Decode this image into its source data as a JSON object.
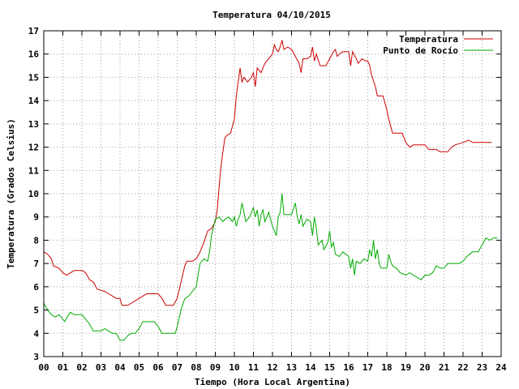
{
  "chart_data": {
    "type": "line",
    "title": "Temperatura 04/10/2015",
    "xlabel": "Tiempo (Hora Local Argentina)",
    "ylabel": "Temperatura (Grados Celsius)",
    "xlim": [
      0,
      24
    ],
    "ylim": [
      3,
      17
    ],
    "x_ticks": [
      "00",
      "01",
      "02",
      "03",
      "04",
      "05",
      "06",
      "07",
      "08",
      "09",
      "10",
      "11",
      "12",
      "13",
      "14",
      "15",
      "16",
      "17",
      "18",
      "19",
      "20",
      "21",
      "22",
      "23",
      "24"
    ],
    "y_ticks": [
      3,
      4,
      5,
      6,
      7,
      8,
      9,
      10,
      11,
      12,
      13,
      14,
      15,
      16,
      17
    ],
    "grid": true,
    "legend_position": "top-right",
    "series": [
      {
        "name": "Temperatura",
        "color": "#cc0000",
        "points": [
          [
            0.0,
            7.5
          ],
          [
            0.2,
            7.4
          ],
          [
            0.4,
            7.2
          ],
          [
            0.5,
            6.9
          ],
          [
            0.8,
            6.8
          ],
          [
            1.0,
            6.6
          ],
          [
            1.2,
            6.5
          ],
          [
            1.4,
            6.6
          ],
          [
            1.6,
            6.7
          ],
          [
            2.0,
            6.7
          ],
          [
            2.2,
            6.6
          ],
          [
            2.4,
            6.3
          ],
          [
            2.6,
            6.2
          ],
          [
            2.8,
            5.9
          ],
          [
            3.2,
            5.8
          ],
          [
            3.4,
            5.7
          ],
          [
            3.6,
            5.6
          ],
          [
            3.8,
            5.5
          ],
          [
            4.0,
            5.5
          ],
          [
            4.1,
            5.2
          ],
          [
            4.4,
            5.2
          ],
          [
            4.6,
            5.3
          ],
          [
            4.8,
            5.4
          ],
          [
            5.0,
            5.5
          ],
          [
            5.2,
            5.6
          ],
          [
            5.4,
            5.7
          ],
          [
            5.6,
            5.7
          ],
          [
            6.0,
            5.7
          ],
          [
            6.2,
            5.5
          ],
          [
            6.4,
            5.2
          ],
          [
            6.8,
            5.2
          ],
          [
            7.0,
            5.5
          ],
          [
            7.2,
            6.2
          ],
          [
            7.4,
            6.9
          ],
          [
            7.5,
            7.1
          ],
          [
            7.8,
            7.1
          ],
          [
            8.0,
            7.2
          ],
          [
            8.2,
            7.5
          ],
          [
            8.4,
            7.9
          ],
          [
            8.6,
            8.4
          ],
          [
            8.8,
            8.5
          ],
          [
            9.0,
            8.8
          ],
          [
            9.1,
            9.3
          ],
          [
            9.2,
            10.3
          ],
          [
            9.3,
            11.2
          ],
          [
            9.4,
            11.8
          ],
          [
            9.5,
            12.4
          ],
          [
            9.6,
            12.5
          ],
          [
            9.8,
            12.6
          ],
          [
            10.0,
            13.2
          ],
          [
            10.1,
            14.2
          ],
          [
            10.2,
            14.8
          ],
          [
            10.3,
            15.4
          ],
          [
            10.4,
            14.8
          ],
          [
            10.5,
            15.0
          ],
          [
            10.7,
            14.8
          ],
          [
            10.9,
            15.0
          ],
          [
            11.0,
            15.2
          ],
          [
            11.1,
            14.6
          ],
          [
            11.2,
            15.4
          ],
          [
            11.4,
            15.2
          ],
          [
            11.6,
            15.6
          ],
          [
            11.8,
            15.8
          ],
          [
            12.0,
            16.0
          ],
          [
            12.1,
            16.4
          ],
          [
            12.2,
            16.2
          ],
          [
            12.3,
            16.1
          ],
          [
            12.4,
            16.3
          ],
          [
            12.5,
            16.6
          ],
          [
            12.6,
            16.2
          ],
          [
            12.8,
            16.3
          ],
          [
            13.0,
            16.2
          ],
          [
            13.2,
            15.9
          ],
          [
            13.4,
            15.6
          ],
          [
            13.5,
            15.2
          ],
          [
            13.6,
            15.8
          ],
          [
            13.8,
            15.8
          ],
          [
            14.0,
            15.9
          ],
          [
            14.1,
            16.3
          ],
          [
            14.2,
            15.7
          ],
          [
            14.3,
            16.0
          ],
          [
            14.5,
            15.5
          ],
          [
            14.8,
            15.5
          ],
          [
            15.0,
            15.8
          ],
          [
            15.2,
            16.1
          ],
          [
            15.3,
            16.2
          ],
          [
            15.4,
            15.9
          ],
          [
            15.5,
            16.0
          ],
          [
            15.7,
            16.1
          ],
          [
            16.0,
            16.1
          ],
          [
            16.1,
            15.5
          ],
          [
            16.2,
            16.1
          ],
          [
            16.4,
            15.8
          ],
          [
            16.5,
            15.6
          ],
          [
            16.7,
            15.8
          ],
          [
            16.9,
            15.7
          ],
          [
            17.0,
            15.7
          ],
          [
            17.1,
            15.5
          ],
          [
            17.2,
            15.1
          ],
          [
            17.4,
            14.6
          ],
          [
            17.5,
            14.2
          ],
          [
            17.8,
            14.2
          ],
          [
            18.0,
            13.6
          ],
          [
            18.1,
            13.2
          ],
          [
            18.3,
            12.6
          ],
          [
            18.5,
            12.6
          ],
          [
            18.8,
            12.6
          ],
          [
            19.0,
            12.2
          ],
          [
            19.2,
            12.0
          ],
          [
            19.4,
            12.1
          ],
          [
            19.6,
            12.1
          ],
          [
            20.0,
            12.1
          ],
          [
            20.2,
            11.9
          ],
          [
            20.6,
            11.9
          ],
          [
            20.8,
            11.8
          ],
          [
            21.0,
            11.8
          ],
          [
            21.2,
            11.8
          ],
          [
            21.4,
            12.0
          ],
          [
            21.6,
            12.1
          ],
          [
            22.0,
            12.2
          ],
          [
            22.3,
            12.3
          ],
          [
            22.5,
            12.2
          ],
          [
            23.0,
            12.2
          ],
          [
            23.5,
            12.2
          ]
        ]
      },
      {
        "name": "Punto de Rocío",
        "color": "#00aa00",
        "points": [
          [
            0.0,
            5.3
          ],
          [
            0.2,
            5.0
          ],
          [
            0.4,
            4.8
          ],
          [
            0.6,
            4.7
          ],
          [
            0.8,
            4.8
          ],
          [
            1.0,
            4.6
          ],
          [
            1.1,
            4.5
          ],
          [
            1.3,
            4.8
          ],
          [
            1.4,
            4.9
          ],
          [
            1.6,
            4.8
          ],
          [
            2.0,
            4.8
          ],
          [
            2.2,
            4.6
          ],
          [
            2.4,
            4.4
          ],
          [
            2.6,
            4.1
          ],
          [
            2.8,
            4.1
          ],
          [
            3.0,
            4.1
          ],
          [
            3.2,
            4.2
          ],
          [
            3.4,
            4.1
          ],
          [
            3.6,
            4.0
          ],
          [
            3.8,
            4.0
          ],
          [
            4.0,
            3.7
          ],
          [
            4.2,
            3.7
          ],
          [
            4.4,
            3.9
          ],
          [
            4.6,
            4.0
          ],
          [
            4.8,
            4.0
          ],
          [
            5.0,
            4.2
          ],
          [
            5.2,
            4.5
          ],
          [
            5.4,
            4.5
          ],
          [
            5.8,
            4.5
          ],
          [
            6.0,
            4.3
          ],
          [
            6.2,
            4.0
          ],
          [
            6.6,
            4.0
          ],
          [
            6.9,
            4.0
          ],
          [
            7.0,
            4.3
          ],
          [
            7.2,
            5.0
          ],
          [
            7.4,
            5.5
          ],
          [
            7.6,
            5.6
          ],
          [
            7.8,
            5.8
          ],
          [
            8.0,
            6.0
          ],
          [
            8.1,
            6.5
          ],
          [
            8.2,
            7.0
          ],
          [
            8.4,
            7.2
          ],
          [
            8.6,
            7.1
          ],
          [
            8.7,
            7.5
          ],
          [
            8.8,
            8.2
          ],
          [
            9.0,
            8.9
          ],
          [
            9.2,
            9.0
          ],
          [
            9.4,
            8.8
          ],
          [
            9.5,
            8.9
          ],
          [
            9.7,
            9.0
          ],
          [
            9.9,
            8.8
          ],
          [
            10.0,
            9.0
          ],
          [
            10.1,
            8.6
          ],
          [
            10.2,
            8.9
          ],
          [
            10.3,
            9.1
          ],
          [
            10.4,
            9.6
          ],
          [
            10.5,
            9.2
          ],
          [
            10.6,
            8.8
          ],
          [
            10.8,
            9.0
          ],
          [
            11.0,
            9.4
          ],
          [
            11.1,
            9.0
          ],
          [
            11.2,
            9.3
          ],
          [
            11.3,
            8.6
          ],
          [
            11.4,
            9.1
          ],
          [
            11.5,
            9.3
          ],
          [
            11.6,
            8.8
          ],
          [
            11.8,
            9.2
          ],
          [
            12.0,
            8.6
          ],
          [
            12.2,
            8.2
          ],
          [
            12.3,
            9.0
          ],
          [
            12.4,
            9.2
          ],
          [
            12.5,
            10.0
          ],
          [
            12.6,
            9.1
          ],
          [
            12.8,
            9.1
          ],
          [
            13.0,
            9.1
          ],
          [
            13.2,
            9.6
          ],
          [
            13.3,
            9.0
          ],
          [
            13.4,
            8.7
          ],
          [
            13.5,
            9.1
          ],
          [
            13.6,
            8.6
          ],
          [
            13.8,
            8.9
          ],
          [
            14.0,
            8.8
          ],
          [
            14.1,
            8.2
          ],
          [
            14.2,
            9.0
          ],
          [
            14.3,
            8.5
          ],
          [
            14.4,
            7.8
          ],
          [
            14.6,
            8.0
          ],
          [
            14.7,
            7.6
          ],
          [
            14.9,
            7.9
          ],
          [
            15.0,
            8.4
          ],
          [
            15.1,
            7.7
          ],
          [
            15.2,
            7.9
          ],
          [
            15.3,
            7.4
          ],
          [
            15.5,
            7.3
          ],
          [
            15.7,
            7.5
          ],
          [
            16.0,
            7.3
          ],
          [
            16.1,
            6.8
          ],
          [
            16.2,
            7.2
          ],
          [
            16.3,
            6.5
          ],
          [
            16.4,
            7.1
          ],
          [
            16.6,
            7.0
          ],
          [
            16.8,
            7.2
          ],
          [
            17.0,
            7.1
          ],
          [
            17.1,
            7.6
          ],
          [
            17.2,
            7.3
          ],
          [
            17.3,
            8.0
          ],
          [
            17.4,
            7.2
          ],
          [
            17.5,
            7.6
          ],
          [
            17.6,
            7.0
          ],
          [
            17.7,
            6.8
          ],
          [
            18.0,
            6.8
          ],
          [
            18.1,
            7.4
          ],
          [
            18.2,
            7.1
          ],
          [
            18.3,
            6.9
          ],
          [
            18.5,
            6.8
          ],
          [
            18.7,
            6.6
          ],
          [
            19.0,
            6.5
          ],
          [
            19.2,
            6.6
          ],
          [
            19.4,
            6.5
          ],
          [
            19.6,
            6.4
          ],
          [
            19.8,
            6.3
          ],
          [
            20.0,
            6.5
          ],
          [
            20.2,
            6.5
          ],
          [
            20.4,
            6.6
          ],
          [
            20.6,
            6.9
          ],
          [
            20.8,
            6.8
          ],
          [
            21.0,
            6.8
          ],
          [
            21.2,
            7.0
          ],
          [
            21.4,
            7.0
          ],
          [
            21.8,
            7.0
          ],
          [
            22.0,
            7.1
          ],
          [
            22.2,
            7.3
          ],
          [
            22.5,
            7.5
          ],
          [
            22.8,
            7.5
          ],
          [
            23.0,
            7.8
          ],
          [
            23.2,
            8.1
          ],
          [
            23.4,
            8.0
          ],
          [
            23.6,
            8.1
          ],
          [
            23.8,
            8.1
          ]
        ]
      }
    ]
  }
}
